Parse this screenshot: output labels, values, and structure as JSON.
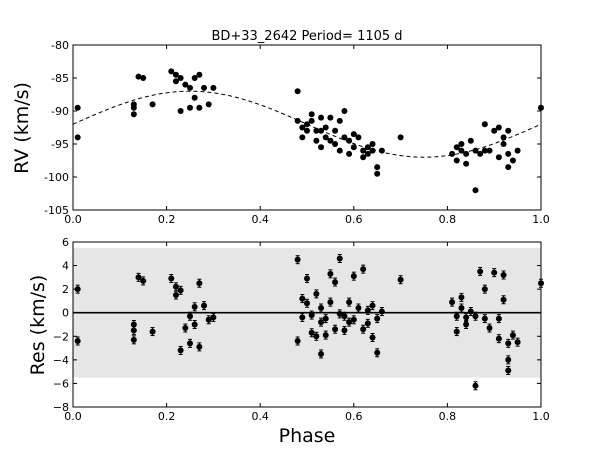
{
  "chart_data": [
    {
      "type": "scatter",
      "title": "BD+33_2642 Period=  1105 d",
      "xlabel": "",
      "ylabel": "RV (km/s)",
      "xlim": [
        0.0,
        1.0
      ],
      "ylim": [
        -105,
        -80
      ],
      "xticks": [
        "0.0",
        "0.2",
        "0.4",
        "0.6",
        "0.8",
        "1.0"
      ],
      "yticks": [
        "-80",
        "-85",
        "-90",
        "-95",
        "-100",
        "-105"
      ],
      "grid": false,
      "model_curve": {
        "style": "dashed",
        "amplitude": 5,
        "offset": -92,
        "peak_phase": 0.25
      },
      "x": [
        0.01,
        0.01,
        0.13,
        0.13,
        0.13,
        0.14,
        0.15,
        0.17,
        0.21,
        0.22,
        0.22,
        0.23,
        0.23,
        0.24,
        0.25,
        0.25,
        0.26,
        0.26,
        0.27,
        0.27,
        0.28,
        0.29,
        0.3,
        0.48,
        0.48,
        0.49,
        0.49,
        0.5,
        0.5,
        0.51,
        0.51,
        0.52,
        0.52,
        0.53,
        0.53,
        0.53,
        0.54,
        0.54,
        0.55,
        0.55,
        0.56,
        0.56,
        0.57,
        0.57,
        0.58,
        0.58,
        0.59,
        0.59,
        0.6,
        0.6,
        0.61,
        0.62,
        0.62,
        0.63,
        0.63,
        0.64,
        0.64,
        0.65,
        0.65,
        0.66,
        0.7,
        0.81,
        0.82,
        0.82,
        0.83,
        0.83,
        0.84,
        0.84,
        0.85,
        0.86,
        0.86,
        0.87,
        0.88,
        0.88,
        0.89,
        0.9,
        0.91,
        0.91,
        0.92,
        0.92,
        0.93,
        0.93,
        0.93,
        0.94,
        0.95,
        1.0
      ],
      "y": [
        -89.5,
        -94,
        -90.5,
        -89.5,
        -89,
        -84.8,
        -85,
        -89,
        -84,
        -84.5,
        -85.5,
        -90,
        -85,
        -86,
        -86.5,
        -89.5,
        -85,
        -88,
        -84.5,
        -89.5,
        -86.5,
        -89,
        -86.5,
        -87,
        -91.5,
        -92.5,
        -94,
        -92,
        -93,
        -90.5,
        -91.5,
        -93,
        -94.5,
        -91,
        -93,
        -95.5,
        -92.5,
        -94,
        -91,
        -94.5,
        -93,
        -95,
        -91.5,
        -96,
        -90,
        -94,
        -94.5,
        -96.5,
        -93.5,
        -95.5,
        -94,
        -96,
        -97,
        -95.5,
        -96.5,
        -95,
        -96,
        -98.5,
        -99.5,
        -96,
        -94,
        -96.5,
        -95.5,
        -97.5,
        -95,
        -96,
        -96.5,
        -98,
        -94.5,
        -96,
        -102,
        -96.5,
        -96,
        -92,
        -96,
        -93,
        -92.5,
        -97,
        -94,
        -95,
        -93,
        -96.5,
        -98.5,
        -97.5,
        -96,
        -89.5
      ],
      "error_bars": false
    },
    {
      "type": "scatter",
      "title": "",
      "xlabel": "Phase",
      "ylabel": "Res (km/s)",
      "xlim": [
        0.0,
        1.0
      ],
      "ylim": [
        -8,
        6
      ],
      "xticks": [
        "0.0",
        "0.2",
        "0.4",
        "0.6",
        "0.8",
        "1.0"
      ],
      "yticks": [
        "6",
        "4",
        "2",
        "0",
        "−2",
        "−4",
        "−6",
        "−8"
      ],
      "grid": false,
      "shaded_band": [
        -5.5,
        5.5
      ],
      "zero_line": 0,
      "x": [
        0.01,
        0.01,
        0.13,
        0.13,
        0.13,
        0.14,
        0.15,
        0.17,
        0.21,
        0.22,
        0.22,
        0.23,
        0.23,
        0.24,
        0.25,
        0.25,
        0.26,
        0.26,
        0.27,
        0.27,
        0.28,
        0.29,
        0.3,
        0.48,
        0.48,
        0.49,
        0.49,
        0.5,
        0.5,
        0.51,
        0.51,
        0.52,
        0.52,
        0.53,
        0.53,
        0.53,
        0.54,
        0.54,
        0.55,
        0.55,
        0.56,
        0.56,
        0.57,
        0.57,
        0.58,
        0.58,
        0.59,
        0.59,
        0.6,
        0.6,
        0.61,
        0.62,
        0.62,
        0.63,
        0.63,
        0.64,
        0.64,
        0.65,
        0.65,
        0.66,
        0.7,
        0.81,
        0.82,
        0.82,
        0.83,
        0.83,
        0.84,
        0.84,
        0.85,
        0.86,
        0.86,
        0.87,
        0.88,
        0.88,
        0.89,
        0.9,
        0.91,
        0.91,
        0.92,
        0.92,
        0.93,
        0.93,
        0.93,
        0.94,
        0.95,
        1.0
      ],
      "y": [
        2,
        -2.4,
        -1.5,
        -2.3,
        -1,
        3,
        2.7,
        -1.6,
        2.9,
        2.2,
        1.5,
        -3.2,
        1.9,
        -1.3,
        -0.3,
        -2.6,
        0.5,
        -1,
        2.5,
        -2.9,
        0.6,
        -0.6,
        -0.4,
        4.5,
        -2.4,
        1.2,
        -0.4,
        2.9,
        0.8,
        -1.7,
        -0.2,
        1.6,
        -2,
        -0.8,
        -3.5,
        0.4,
        -1.9,
        -0.5,
        3.3,
        0.9,
        -1.4,
        2.6,
        4.6,
        -0.1,
        -0.3,
        -1.5,
        0.9,
        -0.8,
        3.1,
        -0.6,
        0.4,
        -1.4,
        3.7,
        0.2,
        -0.9,
        0.6,
        -2.1,
        -3.4,
        -0.5,
        0.1,
        2.8,
        0.9,
        -0.3,
        -1.6,
        1.3,
        0.4,
        -1,
        -0.4,
        0.1,
        -6.2,
        -0.3,
        3.5,
        -0.5,
        2,
        -1.3,
        3.4,
        -0.5,
        -2.2,
        3.2,
        1.1,
        -2.6,
        -4,
        -4.9,
        -1.9,
        -2.5,
        2.5
      ],
      "error_bars": true
    }
  ]
}
